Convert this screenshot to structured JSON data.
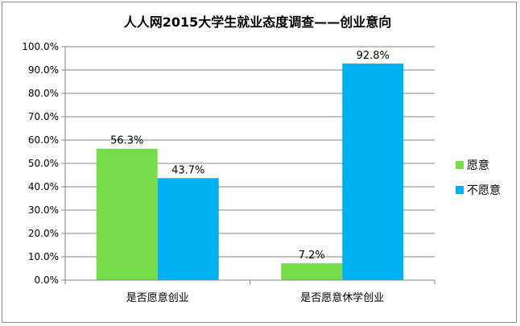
{
  "chart_data": {
    "type": "bar",
    "title": "人人网2015大学生就业态度调查——创业意向",
    "categories": [
      "是否愿意创业",
      "是否愿意休学创业"
    ],
    "series": [
      {
        "name": "愿意",
        "values": [
          56.3,
          7.2
        ],
        "labels": [
          "56.3%",
          "7.2%"
        ],
        "color": "#77dd4a"
      },
      {
        "name": "不愿意",
        "values": [
          43.7,
          92.8
        ],
        "labels": [
          "43.7%",
          "92.8%"
        ],
        "color": "#00b0f0"
      }
    ],
    "ylim": [
      0,
      100
    ],
    "yticks": [
      "0.0%",
      "10.0%",
      "20.0%",
      "30.0%",
      "40.0%",
      "50.0%",
      "60.0%",
      "70.0%",
      "80.0%",
      "90.0%",
      "100.0%"
    ],
    "grid": true,
    "legend": "right"
  }
}
